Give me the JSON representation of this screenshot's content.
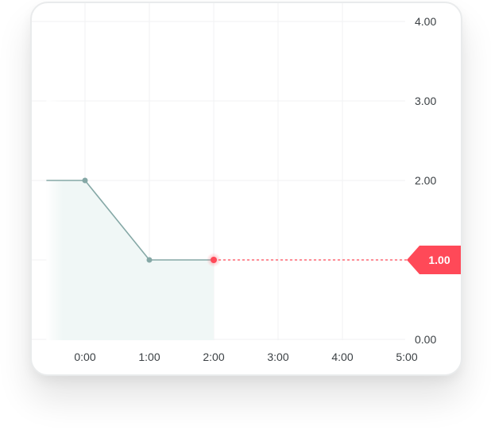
{
  "chart_data": {
    "type": "area",
    "x_ticks": [
      "0:00",
      "1:00",
      "2:00",
      "3:00",
      "4:00",
      "5:00"
    ],
    "y_ticks": [
      "0.00",
      "1.00",
      "2.00",
      "3.00",
      "4.00"
    ],
    "xlim": [
      -0.6,
      5.0
    ],
    "ylim": [
      0,
      4
    ],
    "series": [
      {
        "points": [
          {
            "x": -0.6,
            "y": 2.0
          },
          {
            "x": 0.0,
            "y": 2.0
          },
          {
            "x": 1.0,
            "y": 1.0
          },
          {
            "x": 2.0,
            "y": 1.0
          }
        ],
        "color": "#85a8a6",
        "fill": "#f0f7f6"
      }
    ],
    "current_value": {
      "x": 2.0,
      "y": 1.0,
      "label": "1.00",
      "color": "#ff4958"
    },
    "grid": true,
    "y_axis_side": "right"
  }
}
